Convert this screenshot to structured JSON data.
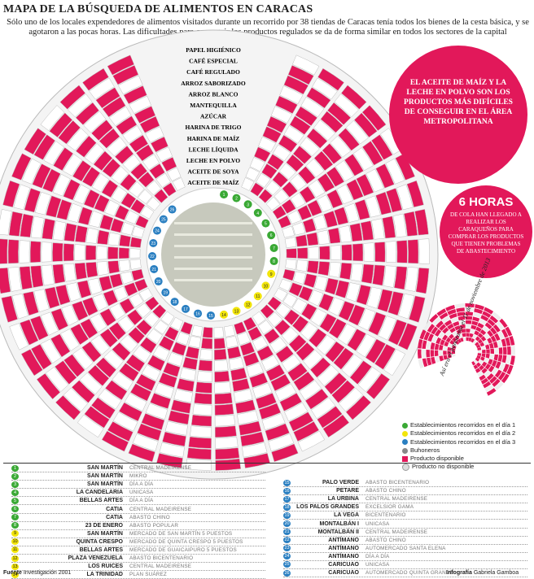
{
  "title": "MAPA DE LA BÚSQUEDA DE ALIMENTOS EN CARACAS",
  "intro": "Sólo uno de los locales expendedores de alimentos visitados durante un recorrido por 38 tiendas de Caracas tenía todos los bienes de la cesta básica, y se agotaron a las pocas horas. Las dificultades para conseguir los productos regulados se da de forma similar en todos los sectores de la capital",
  "products": [
    "PAPEL HIGIÉNICO",
    "CAFÉ ESPECIAL",
    "CAFÉ REGULADO",
    "ARROZ SABORIZADO",
    "ARROZ BLANCO",
    "MANTEQUILLA",
    "AZÚCAR",
    "HARINA DE TRIGO",
    "HARINA DE MAÍZ",
    "LECHE LÍQUIDA",
    "LECHE EN POLVO",
    "ACEITE DE SOYA",
    "ACEITE DE MAÍZ"
  ],
  "callout_main": "EL ACEITE DE MAÍZ Y LA LECHE EN POLVO SON LOS PRODUCTOS MÁS DIFÍCILES DE CONSEGUIR EN EL ÁREA METROPOLITANA",
  "callout_hours": {
    "big": "6 HORAS",
    "text": "DE COLA HAN LLEGADO A REALIZAR LOS CARAQUEÑOS PARA COMPRAR LOS PRODUCTOS QUE TIENEN PROBLEMAS DE ABASTECIMIENTO"
  },
  "mini_caption": "Así era el panorama el 11 de noviembre de 2013",
  "legend": [
    {
      "label": "Establecimientos recorridos en el día 1",
      "color": "#3aa935",
      "shape": "dot"
    },
    {
      "label": "Establecimientos recorridos en el día 2",
      "color": "#f2e50b",
      "shape": "dot"
    },
    {
      "label": "Establecimientos recorridos en el día 3",
      "color": "#2a7fc1",
      "shape": "dot"
    },
    {
      "label": "Buhoneros",
      "color": "#888888",
      "shape": "dot"
    },
    {
      "label": "Producto disponible",
      "color": "#e2185a",
      "shape": "square"
    },
    {
      "label": "Producto no disponible",
      "color": "#dddddd",
      "shape": "dot"
    }
  ],
  "stores_left": [
    {
      "n": "1",
      "zone": "SAN MARTÍN",
      "store": "CENTRAL MADEIRENSE",
      "day": 1
    },
    {
      "n": "2",
      "zone": "SAN MARTÍN",
      "store": "MIKRO",
      "day": 1
    },
    {
      "n": "3",
      "zone": "SAN MARTÍN",
      "store": "DÍA A DÍA",
      "day": 1
    },
    {
      "n": "4",
      "zone": "LA CANDELARIA",
      "store": "UNICASA",
      "day": 1
    },
    {
      "n": "5",
      "zone": "BELLAS ARTES",
      "store": "DÍA A DÍA",
      "day": 1
    },
    {
      "n": "6",
      "zone": "CATIA",
      "store": "CENTRAL MADEIRENSE",
      "day": 1
    },
    {
      "n": "7",
      "zone": "CATIA",
      "store": "ABASTO CHINO",
      "day": 1
    },
    {
      "n": "8",
      "zone": "23 DE ENERO",
      "store": "ABASTO POPULAR",
      "day": 1
    },
    {
      "n": "9",
      "zone": "SAN MARTÍN",
      "store": "MERCADO DE SAN MARTÍN 5 PUESTOS",
      "day": 2
    },
    {
      "n": "10",
      "zone": "QUINTA CRESPO",
      "store": "MERCADO DE QUINTA CRESPO 5 PUESTOS",
      "day": 2
    },
    {
      "n": "11",
      "zone": "BELLAS ARTES",
      "store": "MERCADO DE GUAICAIPURO 5 PUESTOS",
      "day": 2
    },
    {
      "n": "12",
      "zone": "PLAZA VENEZUELA",
      "store": "ABASTO BICENTENARIO",
      "day": 2
    },
    {
      "n": "13",
      "zone": "LOS RUICES",
      "store": "CENTRAL MADEIRENSE",
      "day": 2
    },
    {
      "n": "14",
      "zone": "LA TRINIDAD",
      "store": "PLAN SUÁREZ",
      "day": 2
    }
  ],
  "stores_right": [
    {
      "n": "15",
      "zone": "PALO VERDE",
      "store": "ABASTO BICENTENARIO",
      "day": 3
    },
    {
      "n": "16",
      "zone": "PETARE",
      "store": "ABASTO CHINO",
      "day": 3
    },
    {
      "n": "17",
      "zone": "LA URBINA",
      "store": "CENTRAL MADEIRENSE",
      "day": 3
    },
    {
      "n": "18",
      "zone": "LOS PALOS GRANDES",
      "store": "EXCELSIOR GAMA",
      "day": 3
    },
    {
      "n": "19",
      "zone": "LA VEGA",
      "store": "BICENTENARIO",
      "day": 3
    },
    {
      "n": "20",
      "zone": "MONTALBÁN I",
      "store": "UNICASA",
      "day": 3
    },
    {
      "n": "21",
      "zone": "MONTALBÁN II",
      "store": "CENTRAL MADEIRENSE",
      "day": 3
    },
    {
      "n": "22",
      "zone": "ANTÍMANO",
      "store": "ABASTO CHINO",
      "day": 3
    },
    {
      "n": "23",
      "zone": "ANTÍMANO",
      "store": "AUTOMERCADO SANTA ELENA",
      "day": 3
    },
    {
      "n": "24",
      "zone": "ANTÍMANO",
      "store": "DÍA A DÍA",
      "day": 3
    },
    {
      "n": "25",
      "zone": "CARICUAO",
      "store": "UNICASA",
      "day": 3
    },
    {
      "n": "26",
      "zone": "CARICUAO",
      "store": "AUTOMERCADO QUINTA GRANDE",
      "day": 3
    }
  ],
  "footer_left": {
    "label": "Fuente",
    "text": "Investigación 2001"
  },
  "footer_right": {
    "label": "Infografía",
    "text": "Gabriela Gamboa"
  },
  "colors": {
    "available": "#e2185a",
    "unavailable": "#ffffff",
    "day1": "#3aa935",
    "day2": "#f2e50b",
    "day3": "#2a7fc1",
    "vendor": "#888888"
  }
}
